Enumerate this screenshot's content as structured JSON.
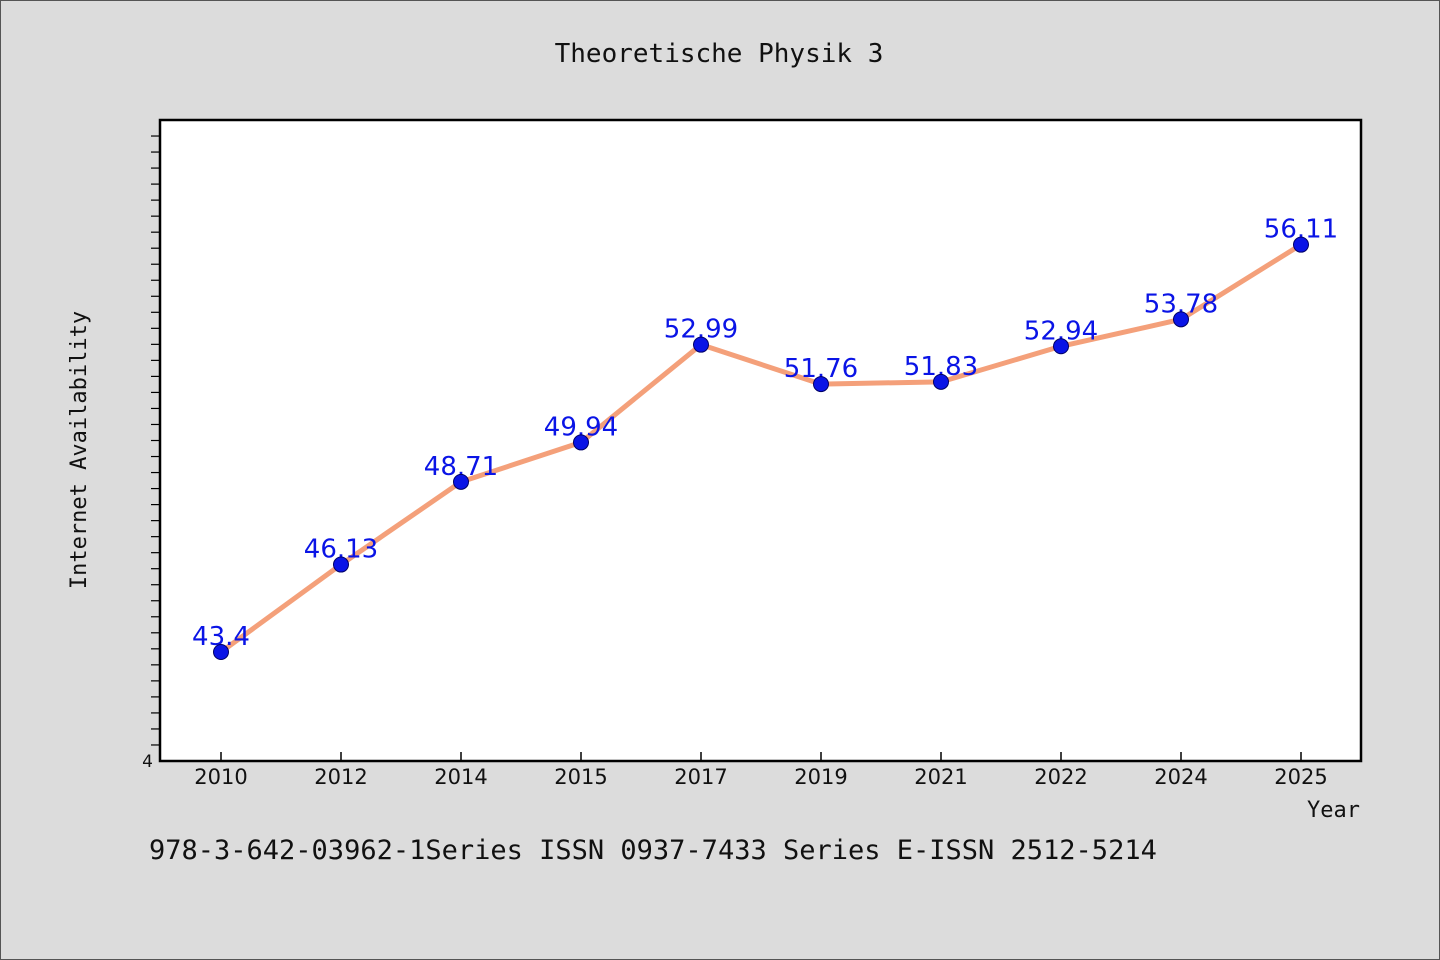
{
  "chart_data": {
    "type": "line",
    "title": "Theoretische Physik 3",
    "xlabel": "Year",
    "ylabel": "Internet Availability",
    "categories": [
      "2010",
      "2012",
      "2014",
      "2015",
      "2017",
      "2019",
      "2021",
      "2022",
      "2024",
      "2025"
    ],
    "series": [
      {
        "values": [
          43.4,
          46.13,
          48.71,
          49.94,
          52.99,
          51.76,
          51.83,
          52.94,
          53.78,
          56.11
        ],
        "data_labels": [
          "43.4",
          "46.13",
          "48.71",
          "49.94",
          "52.99",
          "51.76",
          "51.83",
          "52.94",
          "53.78",
          "56.11"
        ]
      }
    ],
    "ylim": [
      40,
      60
    ],
    "y_tick_labels": [
      "4"
    ],
    "grid": false,
    "legend": "none",
    "colors": {
      "line": "#f4a07a",
      "marker": "#0a14e6",
      "marker_edge": "#000066",
      "data_label": "#0a14e6",
      "plot_background": "#ffffff",
      "page_background": "#dcdcdc"
    }
  },
  "footer": {
    "text": "978-3-642-03962-1Series ISSN 0937-7433 Series E-ISSN 2512-5214"
  }
}
